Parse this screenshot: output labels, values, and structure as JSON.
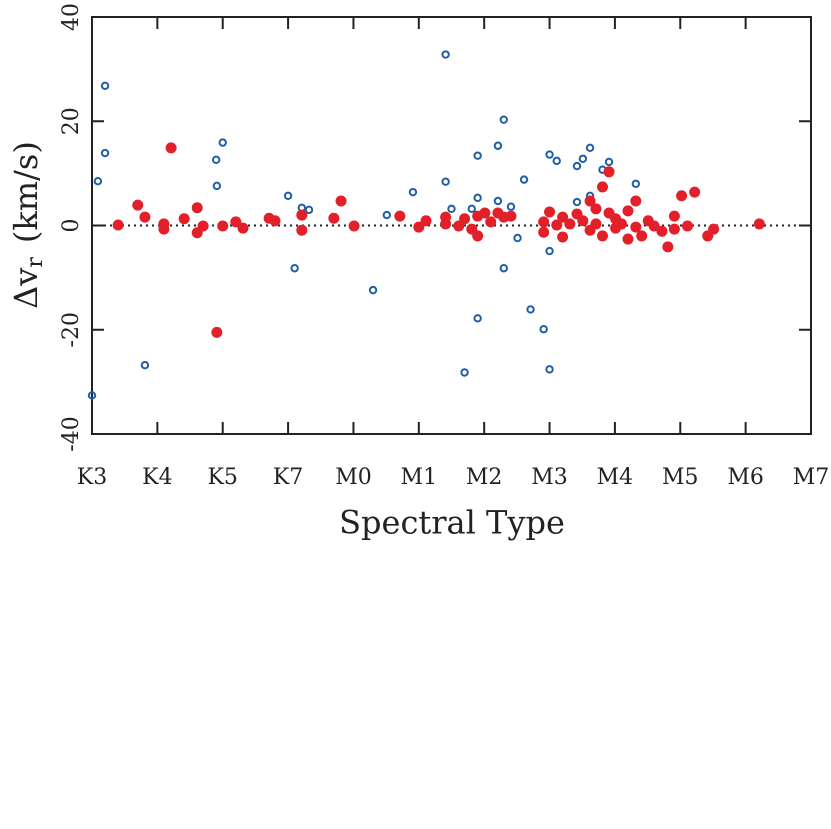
{
  "chart_data": {
    "type": "scatter",
    "xlabel": "Spectral Type",
    "ylabel": {
      "main": "Δv",
      "sub": "r",
      "unit": "(km/s)"
    },
    "xlim": [
      0,
      11
    ],
    "ylim": [
      -40,
      40
    ],
    "xticks": [
      {
        "value": 0,
        "label": "K3"
      },
      {
        "value": 1,
        "label": "K4"
      },
      {
        "value": 2,
        "label": "K5"
      },
      {
        "value": 3,
        "label": "K7"
      },
      {
        "value": 4,
        "label": "M0"
      },
      {
        "value": 5,
        "label": "M1"
      },
      {
        "value": 6,
        "label": "M2"
      },
      {
        "value": 7,
        "label": "M3"
      },
      {
        "value": 8,
        "label": "M4"
      },
      {
        "value": 9,
        "label": "M5"
      },
      {
        "value": 10,
        "label": "M6"
      },
      {
        "value": 11,
        "label": "M7"
      }
    ],
    "yticks": [
      -40,
      -20,
      0,
      20,
      40
    ],
    "hline": 0,
    "series": [
      {
        "color": "#1f5fa8",
        "filled": false,
        "x": [
          0,
          0.09,
          0.2,
          0.2,
          0.81,
          1.9,
          1.91,
          2.0,
          3.0,
          3.1,
          3.21,
          3.32,
          4.3,
          4.51,
          4.91,
          5.41,
          5.41,
          5.5,
          5.7,
          5.81,
          5.9,
          5.9,
          5.9,
          6.21,
          6.21,
          6.3,
          6.3,
          6.41,
          6.51,
          6.61,
          6.71,
          6.91,
          7.0,
          7.0,
          7.0,
          7.11,
          7.42,
          7.42,
          7.51,
          7.62,
          7.62,
          7.81,
          7.91,
          8.32
        ],
        "values": [
          -32.6,
          8.5,
          26.8,
          13.9,
          -26.8,
          12.6,
          7.6,
          15.9,
          5.7,
          -8.2,
          3.4,
          3.0,
          -12.4,
          2.0,
          6.4,
          32.8,
          8.4,
          3.2,
          -28.2,
          3.2,
          13.4,
          -17.8,
          5.3,
          15.3,
          4.7,
          20.3,
          -8.2,
          3.6,
          -2.4,
          8.8,
          -16.1,
          -19.9,
          13.6,
          -4.9,
          -27.6,
          12.4,
          11.4,
          4.5,
          12.8,
          14.9,
          5.7,
          10.7,
          12.2,
          8.0
        ]
      },
      {
        "color": "#e3202a",
        "filled": true,
        "x": [
          0.4,
          0.7,
          0.81,
          1.1,
          1.1,
          1.21,
          1.41,
          1.61,
          1.61,
          1.7,
          1.91,
          2.0,
          2.2,
          2.31,
          2.71,
          2.8,
          3.21,
          3.21,
          3.7,
          3.81,
          4.01,
          4.71,
          5.0,
          5.11,
          5.41,
          5.41,
          5.61,
          5.7,
          5.81,
          5.9,
          5.9,
          6.01,
          6.1,
          6.21,
          6.3,
          6.41,
          6.91,
          6.91,
          7.0,
          7.11,
          7.2,
          7.2,
          7.31,
          7.42,
          7.51,
          7.62,
          7.62,
          7.71,
          7.71,
          7.81,
          7.81,
          7.91,
          7.91,
          8.01,
          8.01,
          8.1,
          8.2,
          8.2,
          8.32,
          8.32,
          8.41,
          8.51,
          8.6,
          8.72,
          8.81,
          8.91,
          8.91,
          9.02,
          9.11,
          9.22,
          9.42,
          9.51,
          10.21
        ],
        "values": [
          0.1,
          3.9,
          1.6,
          0.3,
          -0.7,
          14.9,
          1.3,
          3.4,
          -1.4,
          -0.1,
          -20.5,
          -0.1,
          0.7,
          -0.5,
          1.4,
          0.9,
          -0.9,
          2.0,
          1.4,
          4.7,
          -0.1,
          1.8,
          -0.3,
          0.9,
          1.6,
          0.3,
          -0.1,
          1.3,
          -0.7,
          -2.0,
          1.8,
          2.4,
          0.7,
          2.4,
          1.6,
          1.8,
          -1.3,
          0.7,
          2.6,
          0.1,
          1.6,
          -2.2,
          0.3,
          2.2,
          0.9,
          4.7,
          -0.9,
          3.2,
          0.3,
          7.4,
          -2.0,
          10.3,
          2.4,
          -0.5,
          1.3,
          0.3,
          2.8,
          -2.6,
          4.7,
          -0.3,
          -2.0,
          0.9,
          -0.1,
          -1.1,
          -4.1,
          1.8,
          -0.7,
          5.7,
          -0.1,
          6.4,
          -2.0,
          -0.7,
          0.3
        ]
      }
    ]
  }
}
